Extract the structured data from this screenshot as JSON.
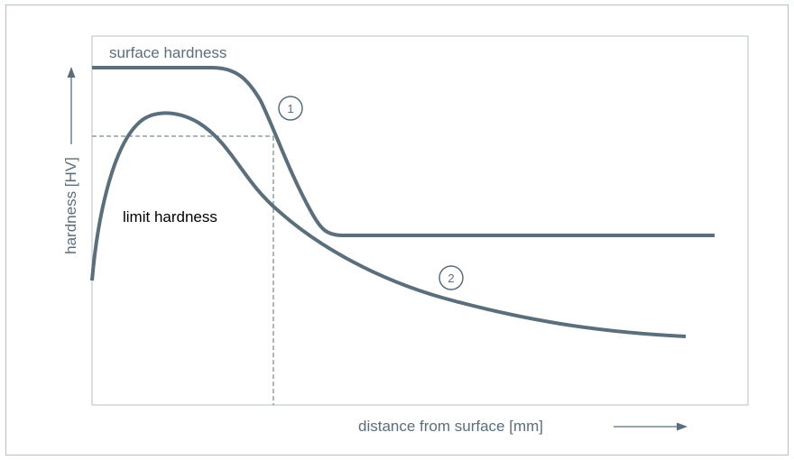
{
  "diagram": {
    "label_surface_hardness": "surface hardness",
    "label_limit_hardness": "limit hardness",
    "axis_y_label": "hardness [HV]",
    "axis_x_label": "distance from surface [mm]",
    "marker_1": "1",
    "marker_2": "2",
    "colors": {
      "curve": "#5b6e7b",
      "axis_text": "#5b6e7b",
      "frame": "#b7bfc6",
      "limit_text": "#000000"
    }
  }
}
